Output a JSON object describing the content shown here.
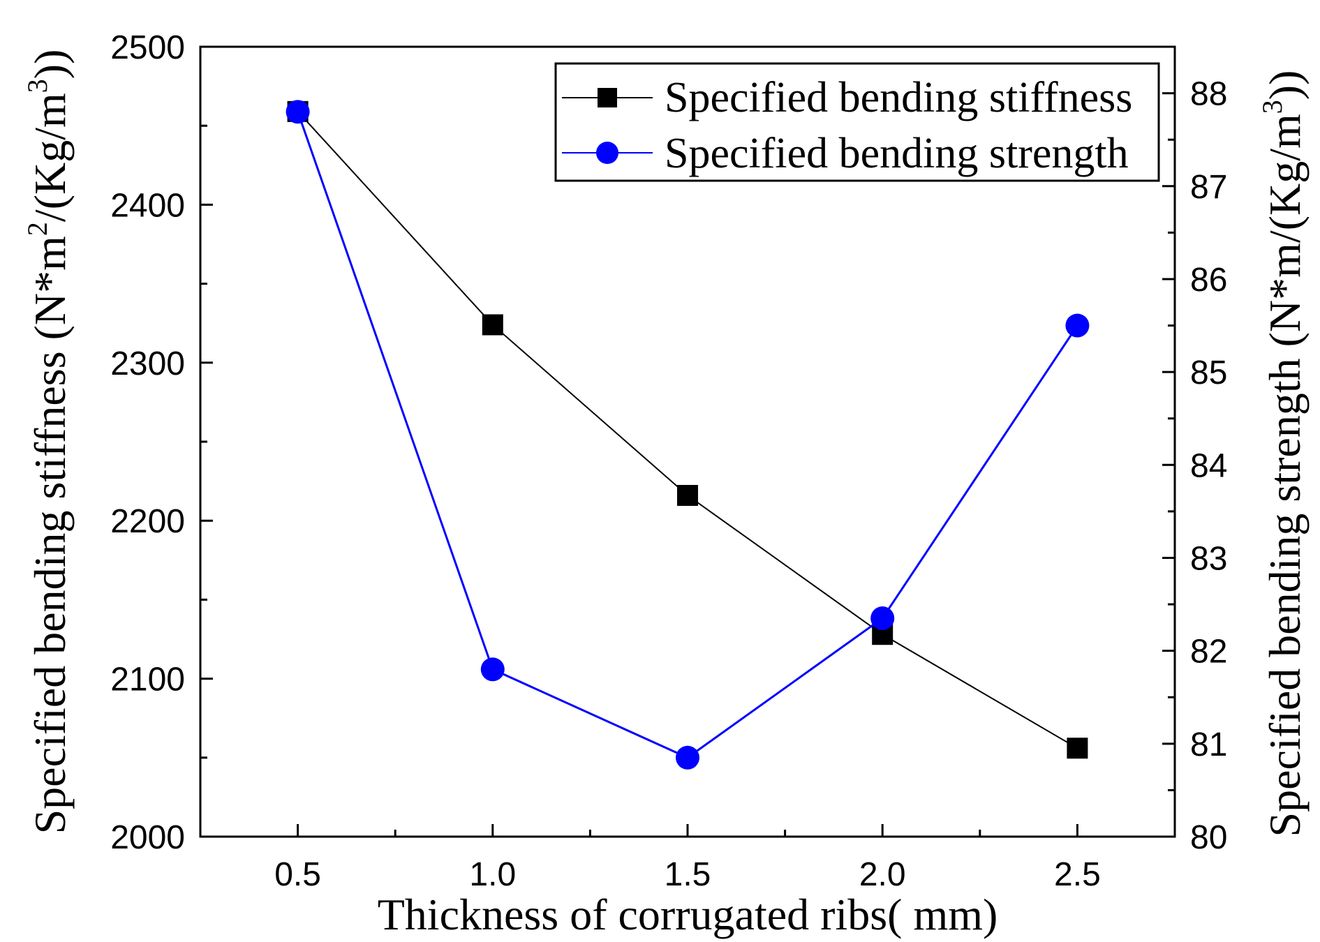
{
  "chart_data": {
    "type": "line",
    "x": [
      0.5,
      1.0,
      1.5,
      2.0,
      2.5
    ],
    "xlabel": "Thickness of corrugated ribs( mm)",
    "xlim": [
      0.25,
      2.75
    ],
    "x_ticks": [
      0.5,
      1.0,
      1.5,
      2.0,
      2.5
    ],
    "x_tick_labels": [
      "0.5",
      "1.0",
      "1.5",
      "2.0",
      "2.5"
    ],
    "y_left": {
      "label_parts": [
        "Specified bending stiffness (N*m",
        "2",
        "/(Kg/m",
        "3",
        "))"
      ],
      "lim": [
        2000,
        2500
      ],
      "ticks": [
        2000,
        2100,
        2200,
        2300,
        2400,
        2500
      ],
      "tick_labels": [
        "2000",
        "2100",
        "2200",
        "2300",
        "2400",
        "2500"
      ]
    },
    "y_right": {
      "label_parts": [
        "Specified bending strength (N*m/(Kg/m",
        "3",
        "))"
      ],
      "lim": [
        80,
        88.5
      ],
      "ticks": [
        80,
        81,
        82,
        83,
        84,
        85,
        86,
        87,
        88
      ],
      "tick_labels": [
        "80",
        "81",
        "82",
        "83",
        "84",
        "85",
        "86",
        "87",
        "88"
      ]
    },
    "series": [
      {
        "name": "Specified bending stiffness",
        "axis": "left",
        "marker": "square",
        "color": "#000000",
        "values": [
          2459,
          2324,
          2216,
          2128,
          2056
        ]
      },
      {
        "name": "Specified bending strength",
        "axis": "right",
        "marker": "circle",
        "color": "#0000ff",
        "values": [
          87.8,
          81.8,
          80.85,
          82.35,
          85.5
        ]
      }
    ],
    "grid": false,
    "legend_position": "top-right"
  }
}
